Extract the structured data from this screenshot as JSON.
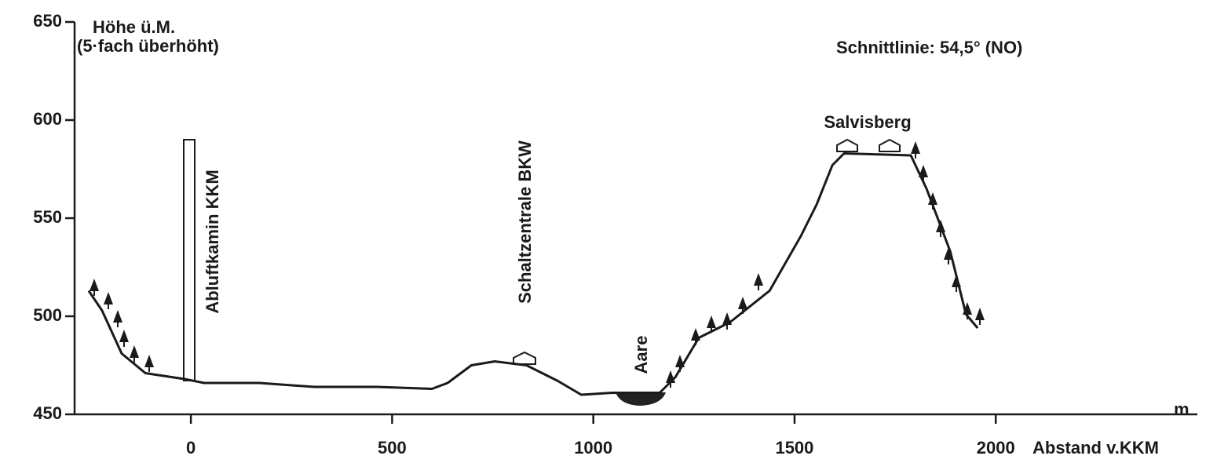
{
  "chart_data": {
    "type": "line",
    "y_label": "Höhe ü.M.",
    "y_label_note": "(5·fach überhöht)",
    "x_unit": "m",
    "x_label": "Abstand v.KKM",
    "annotations": [
      "Schnittlinie: 54,5° (NO)",
      "Salvisberg",
      "Schaltzentrale BKW",
      "Abluftkamin KKM",
      "Aare"
    ],
    "x": [
      -254,
      -221,
      -172,
      -113,
      -16,
      33,
      170,
      306,
      462,
      599,
      638,
      697,
      755,
      834,
      912,
      970,
      1048,
      1165,
      1204,
      1262,
      1340,
      1438,
      1516,
      1555,
      1594,
      1623,
      1789,
      1828,
      1887,
      1926,
      1955
    ],
    "values": [
      513,
      503,
      481,
      471,
      468,
      466,
      466,
      464,
      464,
      463,
      466,
      475,
      477,
      475,
      467,
      460,
      461,
      461,
      469,
      489,
      497,
      513,
      541,
      557,
      577,
      583,
      582,
      565,
      533,
      501,
      494
    ],
    "color": "#1a1a1a",
    "xlim": [
      -289,
      2501
    ],
    "ylim": [
      450,
      650
    ],
    "xticks": [
      0,
      500,
      1000,
      1500,
      2000
    ],
    "yticks": [
      450,
      500,
      550,
      600,
      650
    ]
  }
}
